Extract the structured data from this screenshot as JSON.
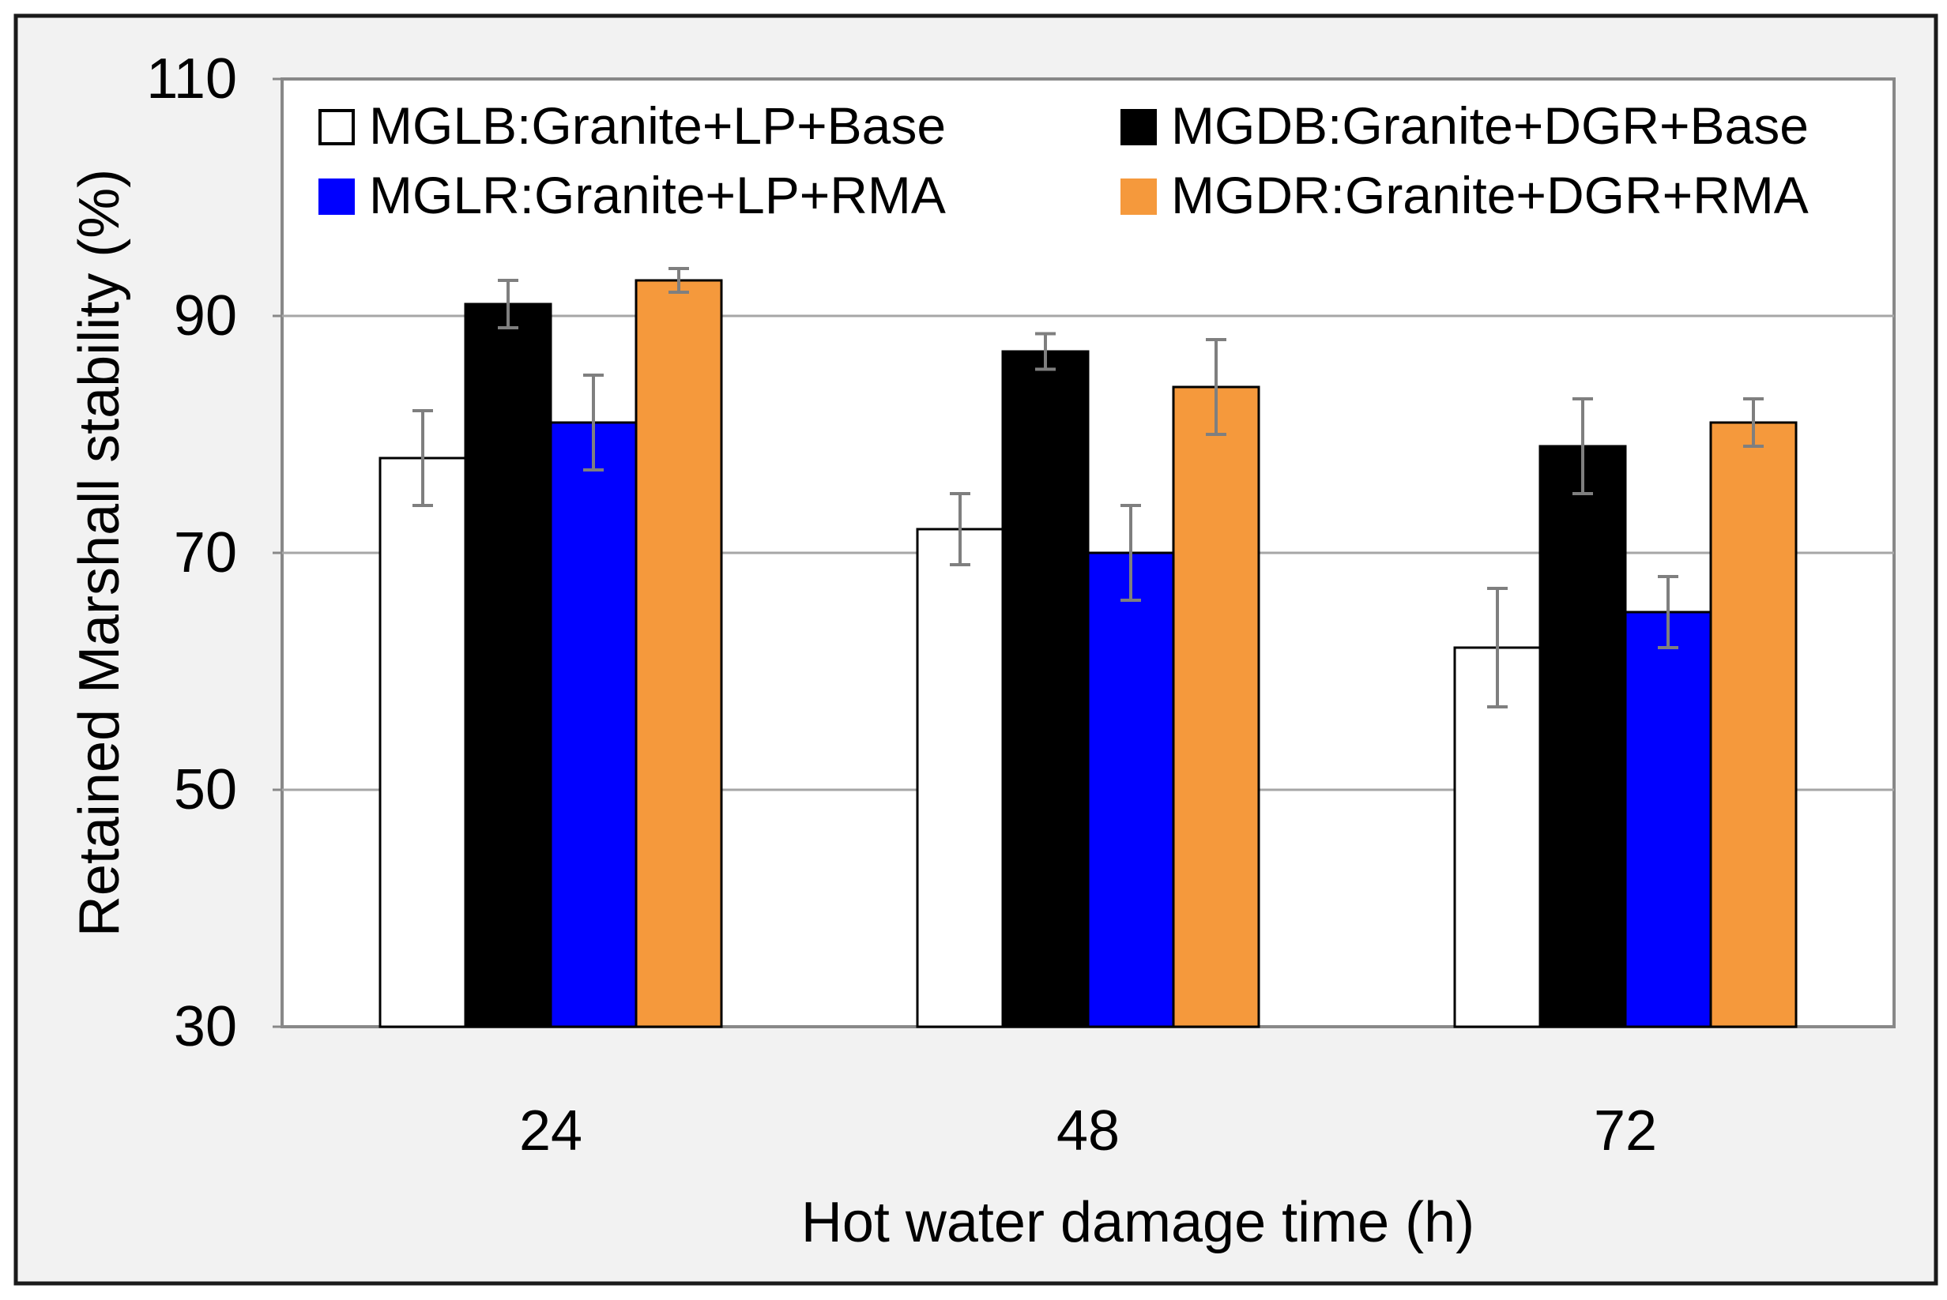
{
  "chart_data": {
    "type": "bar",
    "title": "",
    "xlabel": "Hot water damage time (h)",
    "ylabel": "Retained Marshall stability (%)",
    "categories": [
      "24",
      "48",
      "72"
    ],
    "ylim": [
      30,
      110
    ],
    "yticks": [
      30,
      50,
      70,
      90,
      110
    ],
    "grid": true,
    "legend_position": "top",
    "series": [
      {
        "name": "MGLB:Granite+LP+Base",
        "color": "#ffffff",
        "values": [
          78,
          72,
          62
        ],
        "errors": [
          4,
          3,
          5
        ]
      },
      {
        "name": "MGDB:Granite+DGR+Base",
        "color": "#000000",
        "values": [
          91,
          87,
          79
        ],
        "errors": [
          2,
          1.5,
          4
        ]
      },
      {
        "name": "MGLR:Granite+LP+RMA",
        "color": "#0000ff",
        "values": [
          81,
          70,
          65
        ],
        "errors": [
          4,
          4,
          3
        ]
      },
      {
        "name": "MGDR:Granite+DGR+RMA",
        "color": "#f5993c",
        "values": [
          93,
          84,
          81
        ],
        "errors": [
          1,
          4,
          2
        ]
      }
    ]
  }
}
